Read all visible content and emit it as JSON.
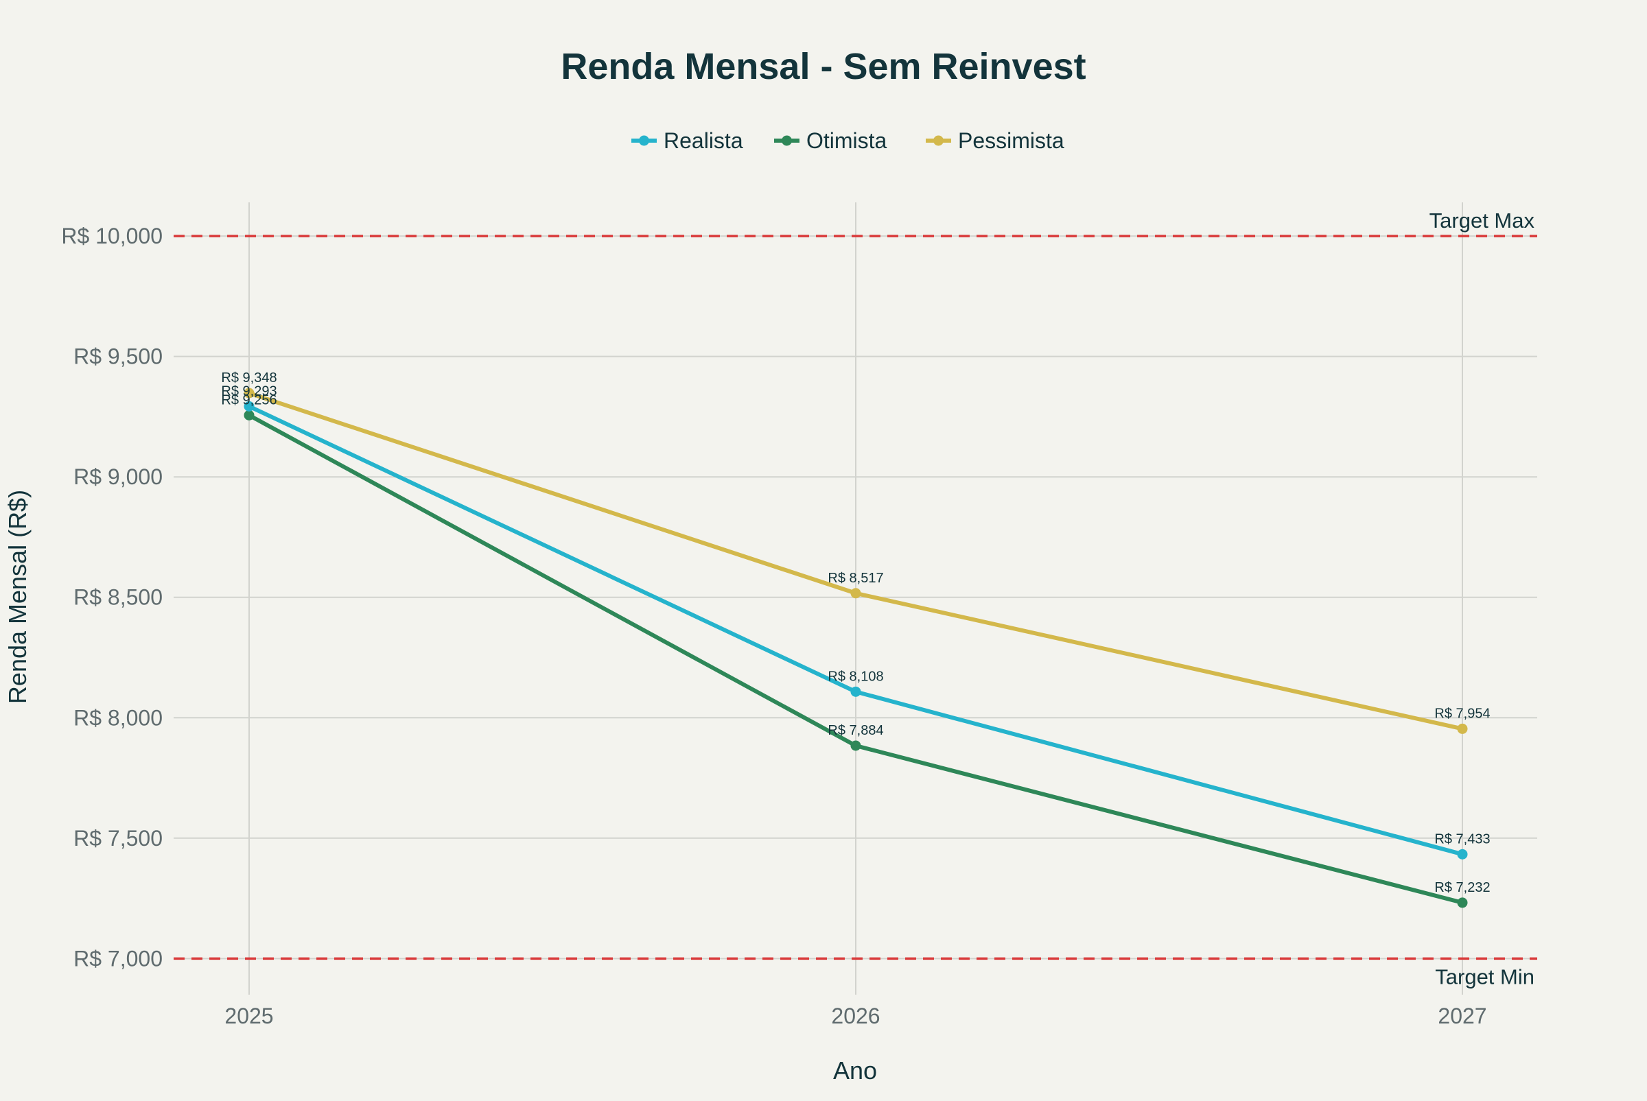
{
  "chart_data": {
    "type": "line",
    "title": "Renda Mensal - Sem Reinvest",
    "xlabel": "Ano",
    "ylabel": "Renda Mensal (R$)",
    "x": [
      "2025",
      "2026",
      "2027"
    ],
    "ylim": [
      6850,
      10140
    ],
    "y_ticks": [
      7000,
      7500,
      8000,
      8500,
      9000,
      9500,
      10000
    ],
    "y_tick_labels": [
      "R$ 7,000",
      "R$ 7,500",
      "R$ 8,000",
      "R$ 8,500",
      "R$ 9,000",
      "R$ 9,500",
      "R$ 10,000"
    ],
    "grid": true,
    "legend_position": "top-center",
    "series": [
      {
        "name": "Realista",
        "color": "#25b3cc",
        "values": [
          9293,
          8108,
          7433
        ],
        "labels": [
          "R$ 9,293",
          "R$ 8,108",
          "R$ 7,433"
        ]
      },
      {
        "name": "Otimista",
        "color": "#2e8758",
        "values": [
          9256,
          7884,
          7232
        ],
        "labels": [
          "R$ 9,256",
          "R$ 7,884",
          "R$ 7,232"
        ]
      },
      {
        "name": "Pessimista",
        "color": "#d3b84b",
        "values": [
          9348,
          8517,
          7954
        ],
        "labels": [
          "R$ 9,348",
          "R$ 8,517",
          "R$ 7,954"
        ]
      }
    ],
    "reference_lines": [
      {
        "label": "Target Max",
        "value": 10000,
        "color": "#d93a3a"
      },
      {
        "label": "Target Min",
        "value": 7000,
        "color": "#d93a3a"
      }
    ]
  }
}
